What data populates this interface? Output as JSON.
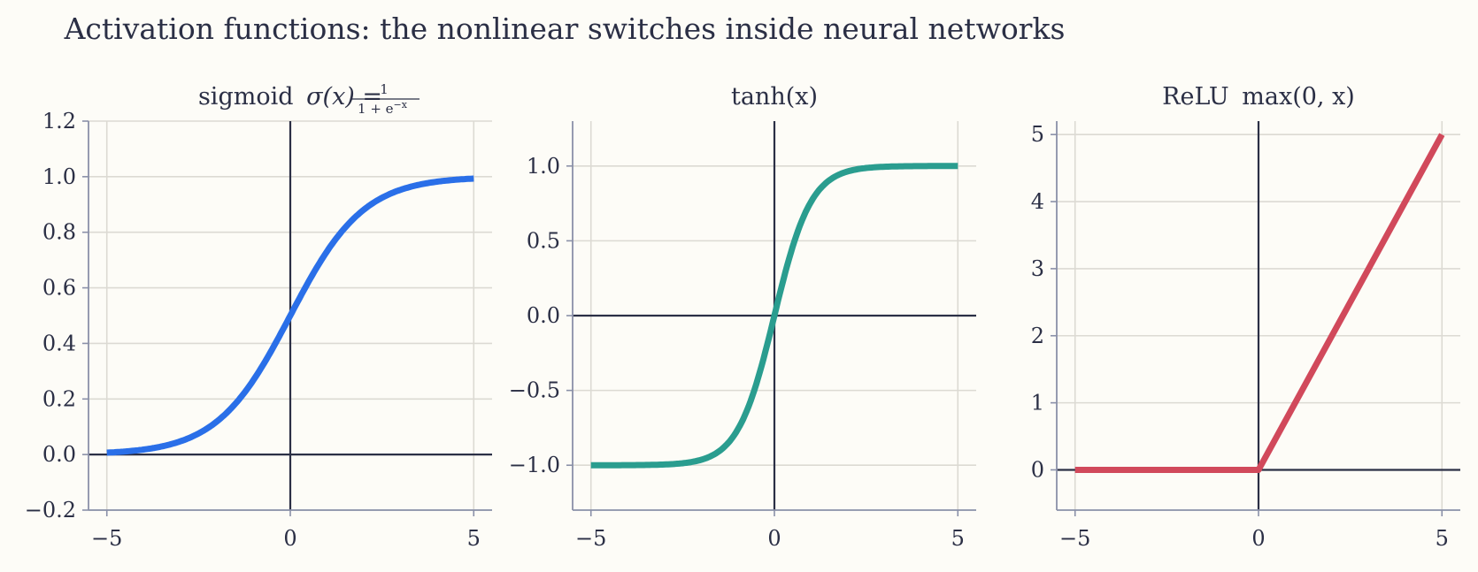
{
  "suptitle": "Activation functions: the nonlinear switches inside neural networks",
  "chart_data": [
    {
      "type": "line",
      "title": "sigmoid σ(x) = 1 / (1 + e^−x)",
      "title_parts": {
        "name": "sigmoid",
        "expr": "σ(x) =",
        "num": "1",
        "den": "1 + e",
        "den_sup": "−x"
      },
      "function": "sigmoid",
      "xlim": [
        -5.5,
        5.5
      ],
      "ylim": [
        -0.2,
        1.2
      ],
      "xticks": [
        -5,
        0,
        5
      ],
      "xtick_labels": [
        "−5",
        "0",
        "5"
      ],
      "yticks": [
        -0.2,
        0.0,
        0.2,
        0.4,
        0.6,
        0.8,
        1.0,
        1.2
      ],
      "ytick_labels": [
        "−0.2",
        "0.0",
        "0.2",
        "0.4",
        "0.6",
        "0.8",
        "1.0",
        "1.2"
      ],
      "color": "#2a6fe8",
      "grid": true,
      "series": [
        {
          "x": [
            -5,
            -4,
            -3,
            -2,
            -1,
            0,
            1,
            2,
            3,
            4,
            5
          ],
          "y": [
            0.0067,
            0.018,
            0.0474,
            0.1192,
            0.2689,
            0.5,
            0.7311,
            0.8808,
            0.9526,
            0.982,
            0.9933
          ]
        }
      ]
    },
    {
      "type": "line",
      "title": "tanh(x)",
      "function": "tanh",
      "xlim": [
        -5.5,
        5.5
      ],
      "ylim": [
        -1.3,
        1.3
      ],
      "xticks": [
        -5,
        0,
        5
      ],
      "xtick_labels": [
        "−5",
        "0",
        "5"
      ],
      "yticks": [
        -1.0,
        -0.5,
        0.0,
        0.5,
        1.0
      ],
      "ytick_labels": [
        "−1.0",
        "−0.5",
        "0.0",
        "0.5",
        "1.0"
      ],
      "color": "#2a9d8f",
      "grid": true,
      "series": [
        {
          "x": [
            -5,
            -4,
            -3,
            -2,
            -1,
            0,
            1,
            2,
            3,
            4,
            5
          ],
          "y": [
            -0.9999,
            -0.9993,
            -0.9951,
            -0.964,
            -0.7616,
            0,
            0.7616,
            0.964,
            0.9951,
            0.9993,
            0.9999
          ]
        }
      ]
    },
    {
      "type": "line",
      "title": "ReLU max(0, x)",
      "title_parts": {
        "name": "ReLU",
        "expr": "max(0, x)"
      },
      "function": "relu",
      "xlim": [
        -5.5,
        5.5
      ],
      "ylim": [
        -0.6,
        5.2
      ],
      "xticks": [
        -5,
        0,
        5
      ],
      "xtick_labels": [
        "−5",
        "0",
        "5"
      ],
      "yticks": [
        0,
        1,
        2,
        3,
        4,
        5
      ],
      "ytick_labels": [
        "0",
        "1",
        "2",
        "3",
        "4",
        "5"
      ],
      "color": "#d1495b",
      "grid": true,
      "series": [
        {
          "x": [
            -5,
            0,
            5
          ],
          "y": [
            0,
            0,
            5
          ]
        }
      ]
    }
  ]
}
